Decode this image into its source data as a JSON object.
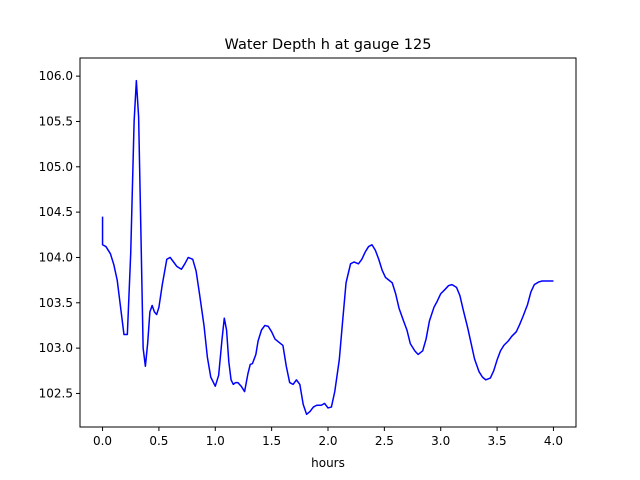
{
  "chart_data": {
    "type": "line",
    "title": "Water Depth h at gauge 125",
    "xlabel": "hours",
    "ylabel": "",
    "xlim": [
      -0.2,
      4.2
    ],
    "ylim": [
      102.13,
      106.2
    ],
    "grid": false,
    "xticks": [
      0.0,
      0.5,
      1.0,
      1.5,
      2.0,
      2.5,
      3.0,
      3.5,
      4.0
    ],
    "xtick_labels": [
      "0.0",
      "0.5",
      "1.0",
      "1.5",
      "2.0",
      "2.5",
      "3.0",
      "3.5",
      "4.0"
    ],
    "yticks": [
      102.5,
      103.0,
      103.5,
      104.0,
      104.5,
      105.0,
      105.5,
      106.0
    ],
    "ytick_labels": [
      "102.5",
      "103.0",
      "103.5",
      "104.0",
      "104.5",
      "105.0",
      "105.5",
      "106.0"
    ],
    "series": [
      {
        "name": "",
        "color": "#0000ff",
        "x": [
          0.0,
          0.0,
          0.03,
          0.07,
          0.1,
          0.13,
          0.16,
          0.19,
          0.22,
          0.25,
          0.28,
          0.3,
          0.32,
          0.34,
          0.36,
          0.38,
          0.4,
          0.42,
          0.44,
          0.46,
          0.48,
          0.5,
          0.53,
          0.57,
          0.6,
          0.63,
          0.66,
          0.7,
          0.73,
          0.76,
          0.8,
          0.83,
          0.86,
          0.9,
          0.93,
          0.96,
          1.0,
          1.03,
          1.06,
          1.08,
          1.1,
          1.12,
          1.14,
          1.16,
          1.18,
          1.2,
          1.23,
          1.26,
          1.29,
          1.31,
          1.33,
          1.36,
          1.38,
          1.41,
          1.44,
          1.47,
          1.5,
          1.53,
          1.56,
          1.6,
          1.63,
          1.66,
          1.69,
          1.72,
          1.75,
          1.78,
          1.81,
          1.84,
          1.87,
          1.9,
          1.94,
          1.97,
          2.0,
          2.03,
          2.06,
          2.1,
          2.13,
          2.16,
          2.2,
          2.23,
          2.27,
          2.3,
          2.33,
          2.36,
          2.39,
          2.42,
          2.45,
          2.48,
          2.51,
          2.54,
          2.57,
          2.6,
          2.63,
          2.67,
          2.7,
          2.73,
          2.77,
          2.8,
          2.84,
          2.87,
          2.9,
          2.94,
          2.97,
          3.0,
          3.04,
          3.07,
          3.1,
          3.14,
          3.17,
          3.2,
          3.24,
          3.27,
          3.3,
          3.34,
          3.37,
          3.4,
          3.44,
          3.47,
          3.5,
          3.53,
          3.56,
          3.6,
          3.63,
          3.67,
          3.7,
          3.73,
          3.77,
          3.8,
          3.83,
          3.87,
          3.9,
          3.93,
          3.97,
          4.0
        ],
        "y": [
          104.45,
          104.14,
          104.12,
          104.04,
          103.92,
          103.75,
          103.45,
          103.15,
          103.15,
          104.05,
          105.5,
          105.95,
          105.55,
          104.3,
          103.0,
          102.8,
          103.05,
          103.4,
          103.47,
          103.4,
          103.37,
          103.45,
          103.7,
          103.98,
          104.0,
          103.95,
          103.9,
          103.87,
          103.93,
          104.0,
          103.98,
          103.85,
          103.6,
          103.25,
          102.9,
          102.68,
          102.58,
          102.7,
          103.1,
          103.33,
          103.2,
          102.85,
          102.65,
          102.6,
          102.62,
          102.62,
          102.58,
          102.52,
          102.72,
          102.82,
          102.83,
          102.93,
          103.08,
          103.2,
          103.25,
          103.24,
          103.18,
          103.1,
          103.07,
          103.03,
          102.8,
          102.62,
          102.6,
          102.65,
          102.6,
          102.38,
          102.27,
          102.3,
          102.35,
          102.37,
          102.37,
          102.39,
          102.34,
          102.35,
          102.52,
          102.87,
          103.3,
          103.72,
          103.93,
          103.95,
          103.93,
          103.98,
          104.06,
          104.12,
          104.14,
          104.08,
          103.98,
          103.86,
          103.78,
          103.75,
          103.72,
          103.6,
          103.44,
          103.3,
          103.2,
          103.05,
          102.97,
          102.93,
          102.97,
          103.1,
          103.3,
          103.45,
          103.52,
          103.6,
          103.65,
          103.69,
          103.7,
          103.67,
          103.58,
          103.42,
          103.22,
          103.05,
          102.88,
          102.74,
          102.68,
          102.65,
          102.67,
          102.75,
          102.87,
          102.97,
          103.03,
          103.08,
          103.13,
          103.18,
          103.26,
          103.35,
          103.48,
          103.62,
          103.7,
          103.73,
          103.74,
          103.74,
          103.74,
          103.74
        ]
      }
    ]
  }
}
